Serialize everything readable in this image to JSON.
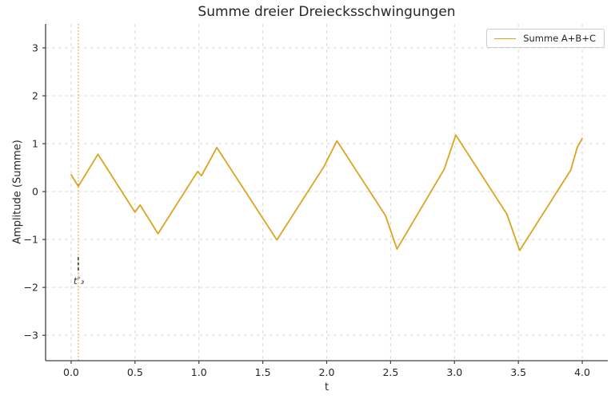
{
  "title": "Summe dreier Dreiecksschwingungen",
  "chart_data": {
    "type": "line",
    "title": "Summe dreier Dreiecksschwingungen",
    "xlabel": "t",
    "ylabel": "Amplitude (Summe)",
    "xlim": [
      -0.2,
      4.2
    ],
    "ylim": [
      -3.53,
      3.5
    ],
    "xticks": {
      "values": [
        0,
        0.5,
        1,
        1.5,
        2,
        2.5,
        3,
        3.5,
        4
      ],
      "labels": [
        "0.0",
        "0.5",
        "1.0",
        "1.5",
        "2.0",
        "2.5",
        "3.0",
        "3.5",
        "4.0"
      ]
    },
    "yticks": {
      "values": [
        -3,
        -2,
        -1,
        0,
        1,
        2,
        3
      ],
      "labels": [
        "−3",
        "−2",
        "−1",
        "0",
        "1",
        "2",
        "3"
      ]
    },
    "grid": {
      "show": true,
      "linestyle": "dashed",
      "color": "#d9d9d9"
    },
    "legend": {
      "position": "upper-right",
      "entries": [
        {
          "label": "Summe A+B+C",
          "color": "#DAA520"
        }
      ]
    },
    "series": [
      {
        "name": "Summe A+B+C",
        "color": "#DAA520",
        "linewidth": 1.8,
        "x": [
          0.0,
          0.056,
          0.21,
          0.5,
          0.54,
          0.68,
          0.99,
          1.02,
          1.14,
          1.61,
          1.98,
          2.08,
          2.46,
          2.55,
          2.92,
          3.01,
          3.41,
          3.51,
          3.91,
          3.96,
          4.0
        ],
        "y": [
          0.35,
          0.11,
          0.78,
          -0.43,
          -0.28,
          -0.88,
          0.42,
          0.33,
          0.92,
          -1.01,
          0.53,
          1.06,
          -0.5,
          -1.2,
          0.47,
          1.18,
          -0.47,
          -1.23,
          0.45,
          0.92,
          1.11
        ]
      }
    ],
    "annotations": [
      {
        "type": "vline",
        "x": 0.056,
        "color": "#DAA520",
        "linestyle": "dotted"
      },
      {
        "type": "segment",
        "x": 0.056,
        "y_from": -1.37,
        "y_to": -1.7,
        "color": "#333333",
        "linestyle": "dashed"
      },
      {
        "type": "text",
        "label": "t″₃",
        "x": 0.062,
        "y": -1.93,
        "color": "#333333",
        "italic": true
      }
    ]
  },
  "colors": {
    "text": "#262626",
    "spine": "#404040",
    "grid": "#d9d9d9",
    "tick": "#404040",
    "background": "#ffffff",
    "accent": "#DAA520"
  }
}
